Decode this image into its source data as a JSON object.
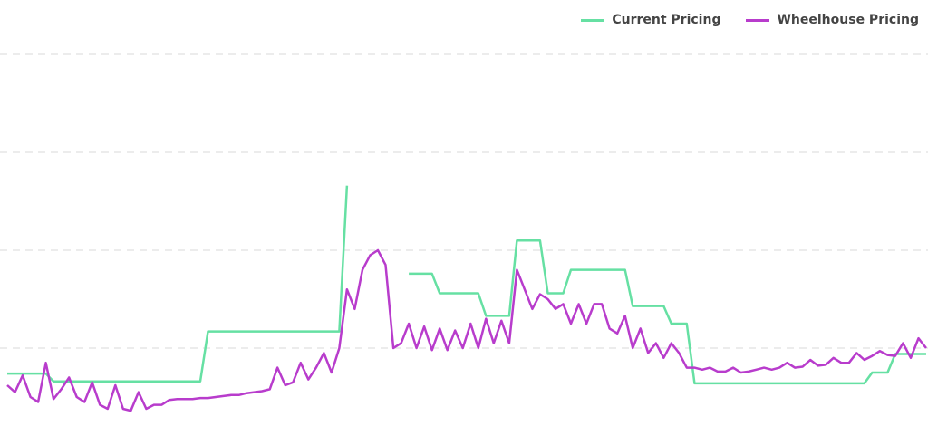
{
  "chart_data": {
    "type": "line",
    "x": [
      0,
      1,
      2,
      3,
      4,
      5,
      6,
      7,
      8,
      9,
      10,
      11,
      12,
      13,
      14,
      15,
      16,
      17,
      18,
      19,
      20,
      21,
      22,
      23,
      24,
      25,
      26,
      27,
      28,
      29,
      30,
      31,
      32,
      33,
      34,
      35,
      36,
      37,
      38,
      39,
      40,
      41,
      42,
      43,
      44,
      45,
      46,
      47,
      48,
      49,
      50,
      51,
      52,
      53,
      54,
      55,
      56,
      57,
      58,
      59,
      60,
      61,
      62,
      63,
      64,
      65,
      66,
      67,
      68,
      69,
      70,
      71,
      72,
      73,
      74,
      75,
      76,
      77,
      78,
      79,
      80,
      81,
      82,
      83,
      84,
      85,
      86,
      87,
      88,
      89,
      90,
      91,
      92,
      93,
      94,
      95,
      96,
      97,
      98,
      99,
      100,
      101,
      102,
      103,
      104,
      105,
      106,
      107,
      108,
      109,
      110,
      111,
      112,
      113,
      114,
      115,
      116,
      117,
      118,
      119
    ],
    "xlim": [
      0,
      119
    ],
    "ylim": [
      0,
      450
    ],
    "yticks": [
      100,
      200,
      300,
      400
    ],
    "grid": true,
    "legend": "top-right",
    "series": [
      {
        "name": "Current Pricing",
        "color": "#66e0a3",
        "values": [
          74,
          74,
          74,
          74,
          74,
          74,
          66,
          66,
          66,
          66,
          66,
          66,
          66,
          66,
          66,
          66,
          66,
          66,
          66,
          66,
          66,
          66,
          66,
          66,
          66,
          66,
          117,
          117,
          117,
          117,
          117,
          117,
          117,
          117,
          117,
          117,
          117,
          117,
          117,
          117,
          117,
          117,
          117,
          117,
          266,
          null,
          null,
          null,
          null,
          null,
          null,
          null,
          176,
          176,
          176,
          176,
          156,
          156,
          156,
          156,
          156,
          156,
          133,
          133,
          133,
          133,
          210,
          210,
          210,
          210,
          156,
          156,
          156,
          180,
          180,
          180,
          180,
          180,
          180,
          180,
          180,
          143,
          143,
          143,
          143,
          143,
          125,
          125,
          125,
          64,
          64,
          64,
          64,
          64,
          64,
          64,
          64,
          64,
          64,
          64,
          64,
          64,
          64,
          64,
          64,
          64,
          64,
          64,
          64,
          64,
          64,
          64,
          75,
          75,
          75,
          94,
          94,
          94,
          94,
          94
        ]
      },
      {
        "name": "Wheelhouse Pricing",
        "color": "#b83ccc",
        "values": [
          62,
          55,
          72,
          50,
          45,
          85,
          48,
          58,
          70,
          50,
          45,
          65,
          42,
          38,
          62,
          38,
          36,
          55,
          38,
          42,
          42,
          47,
          48,
          48,
          48,
          49,
          49,
          50,
          51,
          52,
          52,
          54,
          55,
          56,
          58,
          80,
          62,
          65,
          85,
          68,
          80,
          95,
          75,
          100,
          160,
          140,
          180,
          195,
          200,
          185,
          100,
          105,
          125,
          100,
          122,
          98,
          120,
          98,
          118,
          100,
          125,
          100,
          130,
          105,
          128,
          105,
          180,
          160,
          140,
          155,
          150,
          140,
          145,
          125,
          145,
          125,
          145,
          145,
          120,
          115,
          133,
          100,
          120,
          95,
          105,
          90,
          105,
          95,
          80,
          80,
          78,
          80,
          76,
          76,
          80,
          75,
          76,
          78,
          80,
          78,
          80,
          85,
          80,
          81,
          88,
          82,
          83,
          90,
          85,
          85,
          95,
          88,
          92,
          97,
          93,
          92,
          105,
          90,
          110,
          100
        ]
      }
    ]
  }
}
